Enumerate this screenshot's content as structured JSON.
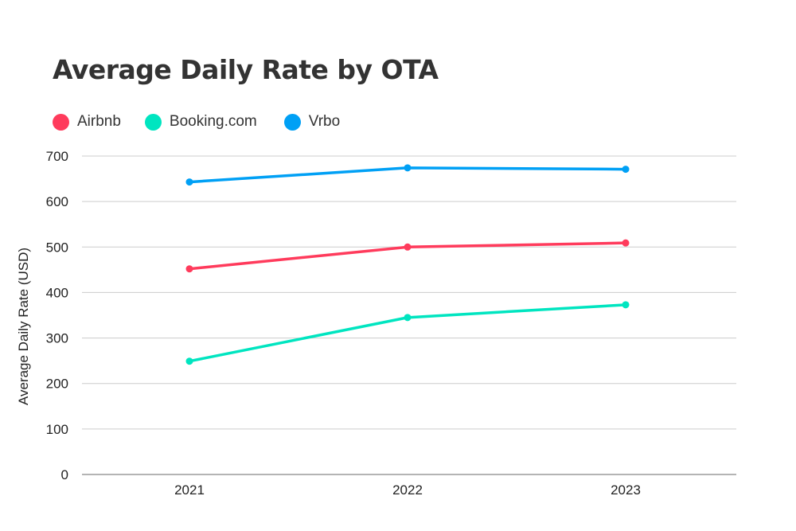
{
  "chart_data": {
    "type": "line",
    "title": "Average Daily Rate by OTA",
    "xlabel": "",
    "ylabel": "Average Daily Rate (USD)",
    "categories": [
      "2021",
      "2022",
      "2023"
    ],
    "ylim": [
      0,
      700
    ],
    "yticks": [
      "0",
      "100",
      "200",
      "300",
      "400",
      "500",
      "600",
      "700"
    ],
    "grid": true,
    "legend_position": "top-left",
    "series": [
      {
        "name": "Airbnb",
        "color": "#ff3b5c",
        "values": [
          452,
          500,
          509
        ]
      },
      {
        "name": "Booking.com",
        "color": "#00e5c0",
        "values": [
          249,
          345,
          373
        ]
      },
      {
        "name": "Vrbo",
        "color": "#00a0f5",
        "values": [
          643,
          674,
          671
        ]
      }
    ]
  }
}
